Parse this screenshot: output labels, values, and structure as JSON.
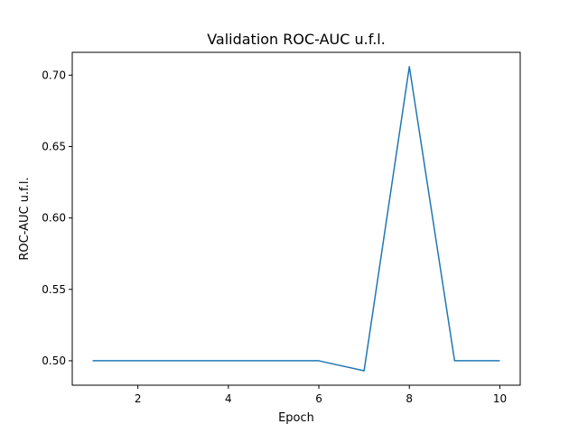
{
  "chart_data": {
    "type": "line",
    "title": "Validation ROC-AUC u.f.l.",
    "xlabel": "Epoch",
    "ylabel": "ROC-AUC u.f.l.",
    "xlim": [
      0.55,
      10.45
    ],
    "ylim": [
      0.4829,
      0.716
    ],
    "xticks": [
      2,
      4,
      6,
      8,
      10
    ],
    "yticks": [
      0.5,
      0.55,
      0.6,
      0.65,
      0.7
    ],
    "ytick_labels": [
      "0.50",
      "0.55",
      "0.60",
      "0.65",
      "0.70"
    ],
    "grid": false,
    "series": [
      {
        "color": "#1f77b4",
        "x": [
          1,
          2,
          3,
          4,
          5,
          6,
          7,
          8,
          9,
          10
        ],
        "y": [
          0.5,
          0.5,
          0.5,
          0.5,
          0.5,
          0.5,
          0.493,
          0.706,
          0.5,
          0.5
        ]
      }
    ]
  }
}
